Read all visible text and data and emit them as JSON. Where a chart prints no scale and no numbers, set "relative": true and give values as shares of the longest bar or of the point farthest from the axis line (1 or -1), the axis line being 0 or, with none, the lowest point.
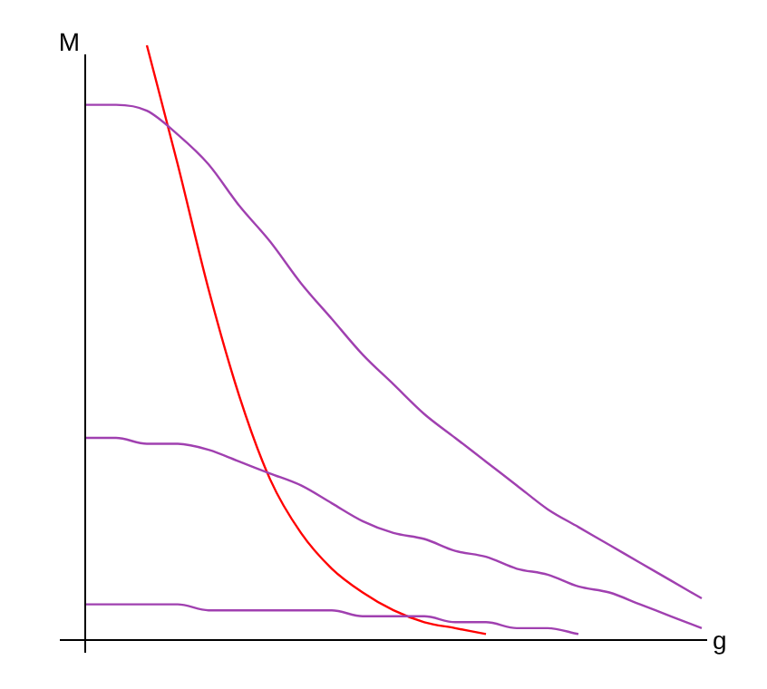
{
  "chart_data": {
    "type": "line",
    "relative": true,
    "xlabel": "g",
    "ylabel": "M",
    "categories": [
      null,
      null,
      null,
      null,
      null,
      null,
      null,
      null,
      null,
      null,
      null,
      null,
      null,
      null,
      null,
      null,
      null,
      null,
      null,
      null,
      null
    ],
    "series": [
      {
        "color": "#a040b0",
        "values": [
          0.9,
          0.9,
          0.89,
          0.85,
          0.8,
          0.73,
          0.67,
          0.6,
          0.54,
          0.48,
          0.43,
          0.38,
          0.34,
          0.3,
          0.26,
          0.22,
          0.19,
          0.16,
          0.13,
          0.1,
          0.07
        ]
      },
      {
        "color": "#a040b0",
        "values": [
          0.34,
          0.34,
          0.33,
          0.33,
          0.32,
          0.3,
          0.28,
          0.26,
          0.23,
          0.2,
          0.18,
          0.17,
          0.15,
          0.14,
          0.12,
          0.11,
          0.09,
          0.08,
          0.06,
          0.04,
          0.02
        ]
      },
      {
        "color": "#a040b0",
        "values": [
          0.06,
          0.06,
          0.06,
          0.06,
          0.05,
          0.05,
          0.05,
          0.05,
          0.05,
          0.04,
          0.04,
          0.04,
          0.03,
          0.03,
          0.02,
          0.02,
          0.01,
          null,
          null,
          null,
          null
        ]
      },
      {
        "color": "#ff0000",
        "values": [
          null,
          null,
          1,
          0.8,
          0.59,
          0.41,
          0.27,
          0.18,
          0.12,
          0.08,
          0.05,
          0.03,
          0.02,
          0.01,
          null,
          null,
          null,
          null,
          null,
          null,
          null
        ]
      }
    ]
  }
}
